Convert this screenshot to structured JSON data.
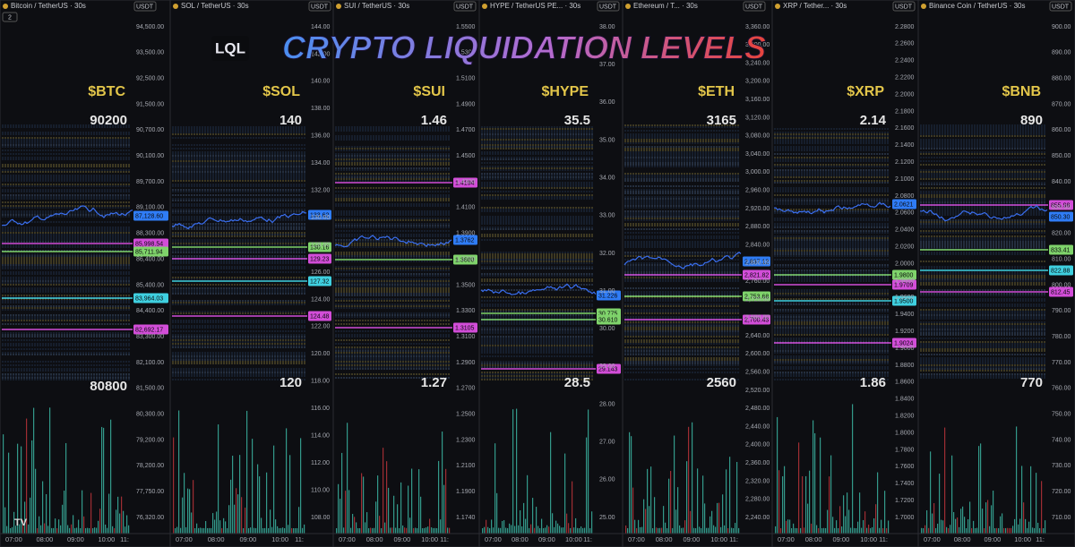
{
  "title": "CRYPTO LIQUIDATION LEVELS",
  "logo": "LQL",
  "tv_badge": "TV",
  "panels": [
    {
      "header": "Bitcoin / TetherUS · 30s",
      "currency": "USDT",
      "indicator": "2",
      "ticker": "$BTC",
      "top": "90200",
      "bottom": "80800",
      "yticks": [
        "94,500.00",
        "93,500.00",
        "92,500.00",
        "91,500.00",
        "90,700.00",
        "90,100.00",
        "89,700.00",
        "89,100.00",
        "88,300.00",
        "86,400.00",
        "85,400.00",
        "84,400.00",
        "83,300.00",
        "82,100.00",
        "81,500.00",
        "80,300.00",
        "79,200.00",
        "78,200.00",
        "77,750.00",
        "76,320.00"
      ],
      "tags": [
        {
          "label": "87,128.60",
          "color": "#2f7cf6"
        },
        {
          "label": "85,998.54",
          "color": "#d24dd8"
        },
        {
          "label": "85,711.94",
          "color": "#7fd36b"
        },
        {
          "label": "83,964.03",
          "color": "#3fd0e0"
        },
        {
          "label": "82,692.17",
          "color": "#d24dd8"
        }
      ],
      "times": [
        "07:00",
        "08:00",
        "09:00",
        "10:00",
        "11:"
      ]
    },
    {
      "header": "SOL / TetherUS · 30s",
      "currency": "USDT",
      "ticker": "$SOL",
      "top": "140",
      "bottom": "120",
      "yticks": [
        "144.00",
        "142.00",
        "140.00",
        "138.00",
        "136.00",
        "134.00",
        "132.00",
        "130.00",
        "128.00",
        "126.00",
        "124.00",
        "122.00",
        "120.00",
        "118.00",
        "116.00",
        "114.00",
        "112.00",
        "110.00",
        "108.00"
      ],
      "tags": [
        {
          "label": "133.62",
          "color": "#2f7cf6"
        },
        {
          "label": "130.16",
          "color": "#7fd36b"
        },
        {
          "label": "129.23",
          "color": "#d24dd8"
        },
        {
          "label": "127.32",
          "color": "#3fd0e0"
        },
        {
          "label": "124.48",
          "color": "#d24dd8"
        }
      ],
      "times": [
        "07:00",
        "08:00",
        "09:00",
        "10:00",
        "11:"
      ]
    },
    {
      "header": "SUI / TetherUS · 30s",
      "currency": "USDT",
      "ticker": "$SUI",
      "top": "1.46",
      "bottom": "1.27",
      "yticks": [
        "1.5500",
        "1.5300",
        "1.5100",
        "1.4900",
        "1.4700",
        "1.4500",
        "1.4300",
        "1.4100",
        "1.3900",
        "1.3700",
        "1.3500",
        "1.3300",
        "1.3100",
        "1.2900",
        "1.2700",
        "1.2500",
        "1.2300",
        "1.2100",
        "1.1900",
        "1.1740"
      ],
      "tags": [
        {
          "label": "1.4194",
          "color": "#d24dd8"
        },
        {
          "label": "1.3762",
          "color": "#2f7cf6"
        },
        {
          "label": "1.3600",
          "color": "#7fd36b"
        },
        {
          "label": "1.3105",
          "color": "#d24dd8"
        }
      ],
      "times": [
        "07:00",
        "08:00",
        "09:00",
        "10:00",
        "11:"
      ]
    },
    {
      "header": "HYPE / TetherUS PE... · 30s",
      "currency": "USDT",
      "ticker": "$HYPE",
      "top": "35.5",
      "bottom": "28.5",
      "yticks": [
        "38.00",
        "37.00",
        "36.00",
        "35.00",
        "34.00",
        "33.00",
        "32.00",
        "31.00",
        "30.00",
        "29.00",
        "28.00",
        "27.00",
        "26.00",
        "25.00"
      ],
      "tags": [
        {
          "label": "31.226",
          "color": "#2f7cf6"
        },
        {
          "label": "30.775",
          "color": "#7fd36b"
        },
        {
          "label": "30.610",
          "color": "#7fd36b"
        },
        {
          "label": "29.143",
          "color": "#d24dd8"
        }
      ],
      "times": [
        "07:00",
        "08:00",
        "09:00",
        "10:00",
        "11:"
      ]
    },
    {
      "header": "Ethereum / T... · 30s",
      "currency": "USDT",
      "ticker": "$ETH",
      "top": "3165",
      "bottom": "2560",
      "yticks": [
        "3,360.00",
        "3,300.00",
        "3,240.00",
        "3,200.00",
        "3,160.00",
        "3,120.00",
        "3,080.00",
        "3,040.00",
        "3,000.00",
        "2,960.00",
        "2,920.00",
        "2,880.00",
        "2,840.00",
        "2,800.00",
        "2,760.00",
        "2,720.00",
        "2,680.00",
        "2,640.00",
        "2,600.00",
        "2,560.00",
        "2,520.00",
        "2,480.00",
        "2,440.00",
        "2,400.00",
        "2,360.00",
        "2,320.00",
        "2,280.00",
        "2,240.00"
      ],
      "tags": [
        {
          "label": "2,837.12",
          "color": "#2f7cf6"
        },
        {
          "label": "2,821.82",
          "color": "#d24dd8"
        },
        {
          "label": "2,753.68",
          "color": "#7fd36b"
        },
        {
          "label": "2,700.43",
          "color": "#d24dd8"
        }
      ],
      "times": [
        "07:00",
        "08:00",
        "09:00",
        "10:00",
        "11:"
      ]
    },
    {
      "header": "XRP / Tether... · 30s",
      "currency": "USDT",
      "ticker": "$XRP",
      "top": "2.14",
      "bottom": "1.86",
      "yticks": [
        "2.2800",
        "2.2600",
        "2.2400",
        "2.2200",
        "2.2000",
        "2.1800",
        "2.1600",
        "2.1400",
        "2.1200",
        "2.1000",
        "2.0800",
        "2.0600",
        "2.0400",
        "2.0200",
        "2.0000",
        "1.9800",
        "1.9600",
        "1.9400",
        "1.9200",
        "1.9000",
        "1.8800",
        "1.8600",
        "1.8400",
        "1.8200",
        "1.8000",
        "1.7800",
        "1.7600",
        "1.7400",
        "1.7200",
        "1.7000"
      ],
      "tags": [
        {
          "label": "2.0621",
          "color": "#2f7cf6"
        },
        {
          "label": "1.9800",
          "color": "#7fd36b"
        },
        {
          "label": "1.9709",
          "color": "#d24dd8"
        },
        {
          "label": "1.9500",
          "color": "#3fd0e0"
        },
        {
          "label": "1.9024",
          "color": "#d24dd8"
        }
      ],
      "times": [
        "07:00",
        "08:00",
        "09:00",
        "10:00",
        "11:"
      ]
    },
    {
      "header": "Binance Coin / TetherUS · 30s",
      "currency": "USDT",
      "ticker": "$BNB",
      "top": "890",
      "bottom": "770",
      "yticks": [
        "900.00",
        "890.00",
        "880.00",
        "870.00",
        "860.00",
        "850.00",
        "840.00",
        "830.00",
        "820.00",
        "810.00",
        "800.00",
        "790.00",
        "780.00",
        "770.00",
        "760.00",
        "750.00",
        "740.00",
        "730.00",
        "720.00",
        "710.00"
      ],
      "tags": [
        {
          "label": "855.98",
          "color": "#d24dd8"
        },
        {
          "label": "850.30",
          "color": "#2f7cf6"
        },
        {
          "label": "833.41",
          "color": "#7fd36b"
        },
        {
          "label": "822.88",
          "color": "#3fd0e0"
        },
        {
          "label": "812.45",
          "color": "#d24dd8"
        }
      ],
      "times": [
        "07:00",
        "08:00",
        "09:00",
        "10:00",
        "11:"
      ]
    }
  ]
}
